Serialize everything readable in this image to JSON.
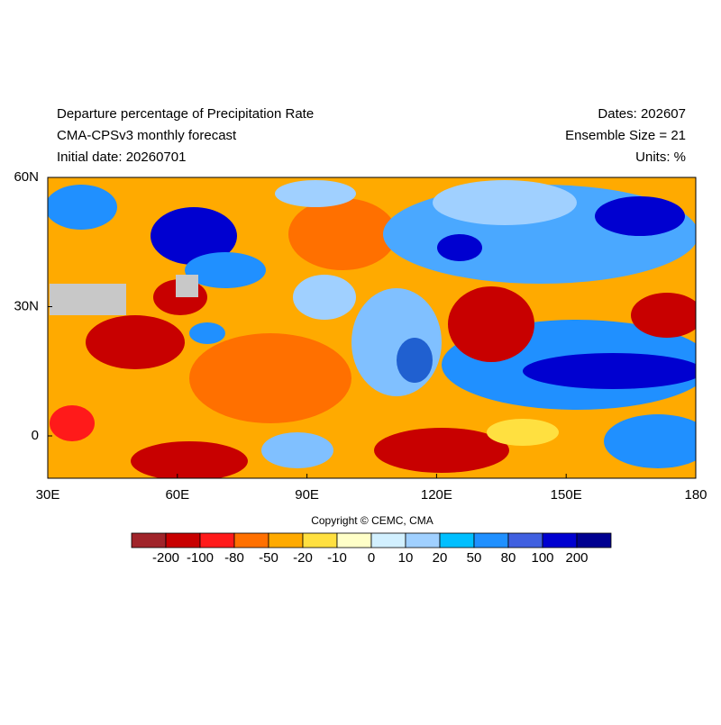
{
  "header": {
    "title": "Departure percentage of Precipitation Rate",
    "subtitle": "CMA-CPSv3 monthly forecast",
    "initial_date": "Initial date: 20260701",
    "dates": "Dates: 202607",
    "ensemble": "Ensemble Size = 21",
    "units": "Units: %"
  },
  "map": {
    "lon_labels": [
      "30E",
      "60E",
      "90E",
      "120E",
      "150E",
      "180"
    ],
    "lat_labels": [
      "60N",
      "30N",
      "0"
    ]
  },
  "copyright": "Copyright © CEMC, CMA",
  "colorbar": {
    "colors": [
      "#a0242a",
      "#c80000",
      "#ff1a1a",
      "#ff7000",
      "#ffaa00",
      "#ffe040",
      "#ffffc8",
      "#d2f0ff",
      "#a0d0ff",
      "#00bfff",
      "#2090ff",
      "#4060e0",
      "#0000d0",
      "#000090"
    ],
    "labels": [
      "-200",
      "-100",
      "-80",
      "-50",
      "-20",
      "-10",
      "0",
      "10",
      "20",
      "50",
      "80",
      "100",
      "200"
    ]
  }
}
